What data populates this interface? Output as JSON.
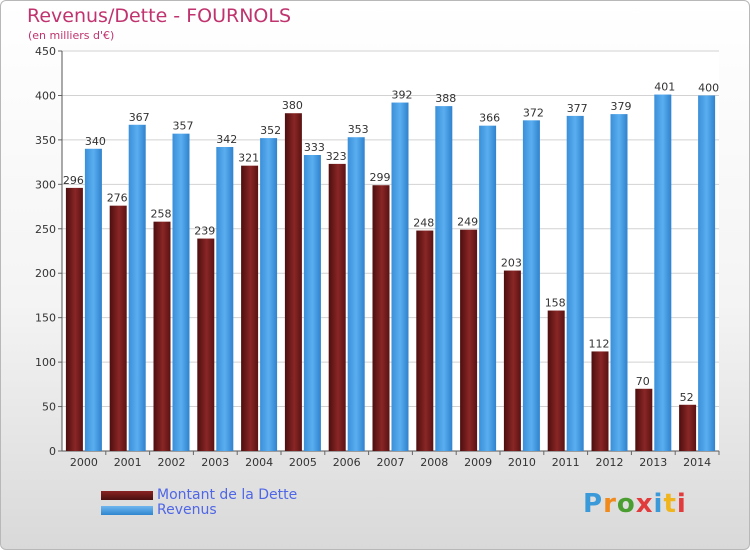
{
  "title": "Revenus/Dette - FOURNOLS",
  "subtitle": "(en milliers d'€)",
  "logo_text": "Proxiti",
  "colors": {
    "title": "#c0336e",
    "dette": "#7a1f1f",
    "revenus": "#3f97de",
    "axis_text": "#333333",
    "grid": "#d2d2d2"
  },
  "chart_data": {
    "type": "bar",
    "categories": [
      "2000",
      "2001",
      "2002",
      "2003",
      "2004",
      "2005",
      "2006",
      "2007",
      "2008",
      "2009",
      "2010",
      "2011",
      "2012",
      "2013",
      "2014"
    ],
    "series": [
      {
        "name": "Montant de la Dette",
        "values": [
          296,
          276,
          258,
          239,
          321,
          380,
          323,
          299,
          248,
          249,
          203,
          158,
          112,
          70,
          52
        ]
      },
      {
        "name": "Revenus",
        "values": [
          340,
          367,
          357,
          342,
          352,
          333,
          353,
          392,
          388,
          366,
          372,
          377,
          379,
          401,
          400
        ]
      }
    ],
    "ylim": [
      0,
      450
    ],
    "yticks": [
      0,
      50,
      100,
      150,
      200,
      250,
      300,
      350,
      400,
      450
    ],
    "grid": true,
    "legend_position": "bottom-left",
    "xlabel": "",
    "ylabel": ""
  }
}
